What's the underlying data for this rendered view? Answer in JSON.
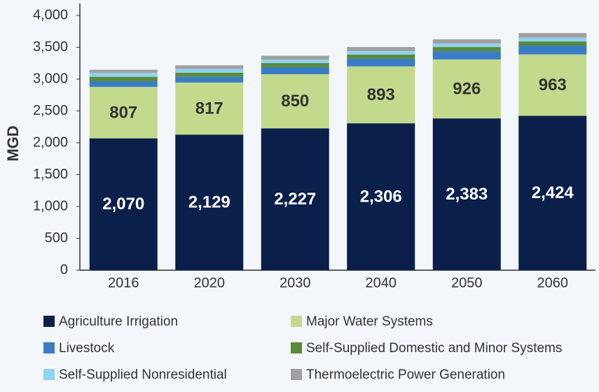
{
  "chart_data": {
    "type": "stacked_bar",
    "y_label": "MGD",
    "categories": [
      "2016",
      "2020",
      "2030",
      "2040",
      "2050",
      "2060"
    ],
    "series": [
      {
        "name": "Agriculture Irrigation",
        "color": "#0b1f4b",
        "values": [
          2070,
          2129,
          2227,
          2306,
          2383,
          2424
        ],
        "value_labels": [
          "2,070",
          "2,129",
          "2,227",
          "2,306",
          "2,383",
          "2,424"
        ],
        "label_color": "#ffffff"
      },
      {
        "name": "Major Water Systems",
        "color": "#c3d98c",
        "values": [
          807,
          817,
          850,
          893,
          926,
          963
        ],
        "label_color": "#333333"
      },
      {
        "name": "Livestock",
        "color": "#3a7dc6",
        "values": [
          90,
          90,
          110,
          120,
          130,
          140
        ]
      },
      {
        "name": "Self-Supplied Domestic and Minor Systems",
        "color": "#5a8a3a",
        "values": [
          70,
          65,
          65,
          65,
          65,
          65
        ]
      },
      {
        "name": "Self-Supplied Nonresidential",
        "color": "#8fd3f0",
        "values": [
          60,
          60,
          55,
          55,
          55,
          60
        ]
      },
      {
        "name": "Thermoelectric Power Generation",
        "color": "#a0a0a0",
        "values": [
          50,
          55,
          60,
          65,
          65,
          70
        ]
      }
    ],
    "ylim": [
      0,
      4000
    ],
    "yticks": [
      0,
      500,
      {
        "value": 1000,
        "label": "1,000"
      },
      {
        "value": 1500,
        "label": "1,500"
      },
      {
        "value": 2000,
        "label": "2,000"
      },
      {
        "value": 2500,
        "label": "2,500"
      },
      {
        "value": 3000,
        "label": "3,000"
      },
      {
        "value": 3500,
        "label": "3,500"
      },
      {
        "value": 4000,
        "label": "4,000"
      }
    ],
    "grid": false,
    "legend": "bottom"
  }
}
